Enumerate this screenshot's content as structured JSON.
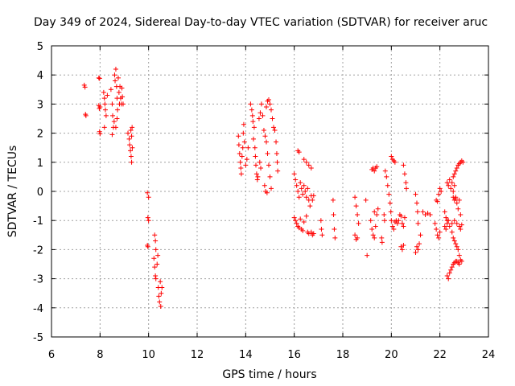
{
  "chart_data": {
    "type": "scatter",
    "title": "Day 349 of 2024, Sidereal Day-to-day VTEC variation (SDTVAR) for receiver aruc",
    "xlabel": "GPS time / hours",
    "ylabel": "SDTVAR / TECUs",
    "xlim": [
      6,
      24
    ],
    "ylim": [
      -5,
      5
    ],
    "xticks": [
      "6",
      "8",
      "10",
      "12",
      "14",
      "16",
      "18",
      "20",
      "22",
      "24"
    ],
    "yticks": [
      "-5",
      "-4",
      "-3",
      "-2",
      "-1",
      "0",
      "1",
      "2",
      "3",
      "4",
      "5"
    ],
    "grid": true,
    "marker": "+",
    "color": "#ff0000",
    "series": [
      {
        "name": "SDTVAR",
        "points": [
          [
            7.35,
            3.65
          ],
          [
            7.38,
            3.58
          ],
          [
            7.4,
            2.65
          ],
          [
            7.42,
            2.6
          ],
          [
            7.95,
            3.9
          ],
          [
            7.98,
            3.88
          ],
          [
            7.95,
            2.95
          ],
          [
            7.97,
            2.85
          ],
          [
            8.0,
            2.9
          ],
          [
            7.98,
            2.05
          ],
          [
            8.0,
            1.98
          ],
          [
            8.15,
            3.4
          ],
          [
            8.18,
            3.2
          ],
          [
            8.2,
            3.0
          ],
          [
            8.22,
            2.8
          ],
          [
            8.25,
            2.6
          ],
          [
            8.18,
            2.2
          ],
          [
            8.3,
            3.3
          ],
          [
            8.45,
            3.5
          ],
          [
            8.5,
            3.0
          ],
          [
            8.52,
            2.6
          ],
          [
            8.55,
            2.2
          ],
          [
            8.5,
            1.95
          ],
          [
            8.58,
            2.4
          ],
          [
            8.6,
            4.0
          ],
          [
            8.62,
            3.8
          ],
          [
            8.65,
            4.2
          ],
          [
            8.68,
            3.6
          ],
          [
            8.7,
            3.2
          ],
          [
            8.72,
            2.8
          ],
          [
            8.75,
            3.9
          ],
          [
            8.78,
            3.4
          ],
          [
            8.8,
            3.0
          ],
          [
            8.82,
            3.6
          ],
          [
            8.85,
            3.2
          ],
          [
            8.88,
            3.0
          ],
          [
            8.9,
            3.55
          ],
          [
            8.92,
            3.25
          ],
          [
            8.95,
            3.0
          ],
          [
            8.7,
            2.5
          ],
          [
            8.65,
            2.2
          ],
          [
            9.15,
            2.0
          ],
          [
            9.2,
            1.8
          ],
          [
            9.22,
            1.6
          ],
          [
            9.25,
            1.4
          ],
          [
            9.28,
            1.2
          ],
          [
            9.3,
            1.0
          ],
          [
            9.32,
            2.2
          ],
          [
            9.3,
            1.9
          ],
          [
            9.27,
            2.1
          ],
          [
            9.33,
            1.5
          ],
          [
            9.95,
            -0.05
          ],
          [
            10.0,
            -0.2
          ],
          [
            9.97,
            -0.9
          ],
          [
            10.0,
            -1.0
          ],
          [
            9.95,
            -1.85
          ],
          [
            9.97,
            -1.9
          ],
          [
            10.25,
            -1.5
          ],
          [
            10.28,
            -1.7
          ],
          [
            10.3,
            -2.0
          ],
          [
            10.22,
            -2.3
          ],
          [
            10.25,
            -2.6
          ],
          [
            10.28,
            -2.9
          ],
          [
            10.3,
            -3.0
          ],
          [
            10.35,
            -2.5
          ],
          [
            10.38,
            -2.2
          ],
          [
            10.4,
            -3.3
          ],
          [
            10.42,
            -3.6
          ],
          [
            10.45,
            -3.8
          ],
          [
            10.5,
            -3.95
          ],
          [
            10.52,
            -3.5
          ],
          [
            10.55,
            -3.3
          ],
          [
            10.48,
            -3.1
          ],
          [
            13.7,
            1.9
          ],
          [
            13.72,
            1.6
          ],
          [
            13.75,
            1.3
          ],
          [
            13.78,
            1.0
          ],
          [
            13.8,
            0.8
          ],
          [
            13.82,
            0.6
          ],
          [
            13.85,
            1.2
          ],
          [
            13.88,
            1.5
          ],
          [
            13.9,
            2.0
          ],
          [
            13.92,
            2.3
          ],
          [
            13.95,
            1.7
          ],
          [
            14.0,
            0.9
          ],
          [
            14.05,
            1.1
          ],
          [
            14.1,
            1.5
          ],
          [
            14.2,
            3.0
          ],
          [
            14.25,
            2.8
          ],
          [
            14.28,
            2.6
          ],
          [
            14.3,
            2.4
          ],
          [
            14.35,
            2.2
          ],
          [
            14.32,
            1.8
          ],
          [
            14.38,
            1.5
          ],
          [
            14.4,
            1.2
          ],
          [
            14.42,
            0.9
          ],
          [
            14.45,
            0.6
          ],
          [
            14.48,
            0.4
          ],
          [
            14.5,
            0.5
          ],
          [
            14.55,
            2.5
          ],
          [
            14.6,
            2.7
          ],
          [
            14.65,
            3.0
          ],
          [
            14.7,
            2.6
          ],
          [
            14.62,
            0.8
          ],
          [
            14.58,
            1.0
          ],
          [
            14.75,
            2.1
          ],
          [
            14.8,
            1.9
          ],
          [
            14.85,
            1.7
          ],
          [
            14.9,
            1.3
          ],
          [
            14.95,
            0.9
          ],
          [
            15.0,
            0.5
          ],
          [
            15.05,
            0.1
          ],
          [
            14.78,
            0.2
          ],
          [
            14.82,
            0.0
          ],
          [
            14.88,
            -0.05
          ],
          [
            14.85,
            2.9
          ],
          [
            14.9,
            3.1
          ],
          [
            14.95,
            3.15
          ],
          [
            15.0,
            3.0
          ],
          [
            15.05,
            2.8
          ],
          [
            15.1,
            2.5
          ],
          [
            15.15,
            2.2
          ],
          [
            15.2,
            2.1
          ],
          [
            15.25,
            1.7
          ],
          [
            15.28,
            1.3
          ],
          [
            15.3,
            1.0
          ],
          [
            15.32,
            0.7
          ],
          [
            16.0,
            0.6
          ],
          [
            16.05,
            0.4
          ],
          [
            16.1,
            0.2
          ],
          [
            16.15,
            0.0
          ],
          [
            16.2,
            -0.2
          ],
          [
            16.25,
            0.3
          ],
          [
            16.3,
            0.1
          ],
          [
            16.35,
            -0.1
          ],
          [
            16.4,
            0.2
          ],
          [
            16.45,
            0.0
          ],
          [
            16.5,
            -0.2
          ],
          [
            16.55,
            0.1
          ],
          [
            16.6,
            -0.3
          ],
          [
            16.65,
            -0.5
          ],
          [
            16.7,
            -0.15
          ],
          [
            16.75,
            -0.3
          ],
          [
            16.8,
            -0.15
          ],
          [
            16.0,
            -0.9
          ],
          [
            16.05,
            -1.0
          ],
          [
            16.1,
            -1.1
          ],
          [
            16.15,
            -1.2
          ],
          [
            16.2,
            -1.25
          ],
          [
            16.25,
            -0.95
          ],
          [
            16.3,
            -1.3
          ],
          [
            16.35,
            -1.35
          ],
          [
            16.4,
            -1.05
          ],
          [
            16.5,
            -0.85
          ],
          [
            16.55,
            -1.4
          ],
          [
            16.6,
            -1.45
          ],
          [
            16.7,
            -1.4
          ],
          [
            16.75,
            -1.5
          ],
          [
            16.8,
            -1.45
          ],
          [
            16.15,
            1.4
          ],
          [
            16.2,
            1.35
          ],
          [
            16.4,
            1.1
          ],
          [
            16.5,
            1.0
          ],
          [
            16.6,
            0.9
          ],
          [
            16.7,
            0.8
          ],
          [
            17.1,
            -1.0
          ],
          [
            17.12,
            -1.3
          ],
          [
            17.15,
            -1.5
          ],
          [
            17.6,
            -0.3
          ],
          [
            17.62,
            -0.8
          ],
          [
            17.65,
            -1.3
          ],
          [
            17.68,
            -1.6
          ],
          [
            18.5,
            -0.2
          ],
          [
            18.55,
            -0.5
          ],
          [
            18.6,
            -0.8
          ],
          [
            18.65,
            -1.1
          ],
          [
            18.5,
            -1.5
          ],
          [
            18.55,
            -1.65
          ],
          [
            18.6,
            -1.6
          ],
          [
            18.95,
            -0.3
          ],
          [
            19.0,
            -2.2
          ],
          [
            19.2,
            0.75
          ],
          [
            19.25,
            0.8
          ],
          [
            19.3,
            0.7
          ],
          [
            19.35,
            0.8
          ],
          [
            19.4,
            0.85
          ],
          [
            19.15,
            -1.0
          ],
          [
            19.2,
            -1.3
          ],
          [
            19.25,
            -1.5
          ],
          [
            19.3,
            -1.6
          ],
          [
            19.35,
            -1.2
          ],
          [
            19.4,
            -0.8
          ],
          [
            19.45,
            -0.6
          ],
          [
            19.3,
            -0.7
          ],
          [
            19.6,
            -1.6
          ],
          [
            19.62,
            -1.75
          ],
          [
            19.7,
            -0.8
          ],
          [
            19.72,
            -1.0
          ],
          [
            19.75,
            0.7
          ],
          [
            19.8,
            0.5
          ],
          [
            19.85,
            0.2
          ],
          [
            19.9,
            -0.1
          ],
          [
            19.95,
            -0.4
          ],
          [
            19.98,
            -0.7
          ],
          [
            20.0,
            1.2
          ],
          [
            20.05,
            1.1
          ],
          [
            20.1,
            1.05
          ],
          [
            20.15,
            1.0
          ],
          [
            20.0,
            -1.0
          ],
          [
            20.05,
            -1.2
          ],
          [
            20.1,
            -1.3
          ],
          [
            20.15,
            -1.05
          ],
          [
            20.2,
            -1.0
          ],
          [
            20.25,
            -1.1
          ],
          [
            20.3,
            -1.0
          ],
          [
            20.35,
            -0.8
          ],
          [
            20.4,
            -0.85
          ],
          [
            20.45,
            -1.1
          ],
          [
            20.5,
            -1.2
          ],
          [
            20.55,
            -0.9
          ],
          [
            20.4,
            -1.9
          ],
          [
            20.45,
            -2.0
          ],
          [
            20.5,
            -1.85
          ],
          [
            20.5,
            0.9
          ],
          [
            20.55,
            0.6
          ],
          [
            20.6,
            0.3
          ],
          [
            20.62,
            0.1
          ],
          [
            21.0,
            -0.1
          ],
          [
            21.05,
            -0.4
          ],
          [
            21.08,
            -0.7
          ],
          [
            21.1,
            -1.1
          ],
          [
            21.05,
            -1.9
          ],
          [
            21.1,
            -2.0
          ],
          [
            21.15,
            -1.8
          ],
          [
            21.2,
            -1.5
          ],
          [
            21.0,
            -2.1
          ],
          [
            21.3,
            -0.7
          ],
          [
            21.4,
            -0.8
          ],
          [
            21.5,
            -0.75
          ],
          [
            21.6,
            -0.8
          ],
          [
            21.8,
            -1.1
          ],
          [
            21.85,
            -1.3
          ],
          [
            21.9,
            -1.5
          ],
          [
            21.95,
            -1.6
          ],
          [
            22.0,
            -1.4
          ],
          [
            21.85,
            -0.3
          ],
          [
            21.9,
            -0.35
          ],
          [
            21.95,
            -0.1
          ],
          [
            22.0,
            0.1
          ],
          [
            22.05,
            0.0
          ],
          [
            22.3,
            0.3
          ],
          [
            22.35,
            0.2
          ],
          [
            22.4,
            0.4
          ],
          [
            22.45,
            0.1
          ],
          [
            22.5,
            0.3
          ],
          [
            22.55,
            0.0
          ],
          [
            22.6,
            0.2
          ],
          [
            22.65,
            -0.2
          ],
          [
            22.7,
            -0.4
          ],
          [
            22.75,
            -0.6
          ],
          [
            22.8,
            -0.3
          ],
          [
            22.85,
            -0.8
          ],
          [
            22.2,
            -1.2
          ],
          [
            22.25,
            -1.3
          ],
          [
            22.3,
            -1.1
          ],
          [
            22.35,
            -1.0
          ],
          [
            22.4,
            -1.2
          ],
          [
            22.5,
            -1.1
          ],
          [
            22.6,
            -1.0
          ],
          [
            22.7,
            -1.1
          ],
          [
            22.8,
            -1.2
          ],
          [
            22.85,
            -1.3
          ],
          [
            22.9,
            -1.15
          ],
          [
            22.5,
            -1.4
          ],
          [
            22.55,
            -1.6
          ],
          [
            22.6,
            -1.7
          ],
          [
            22.65,
            -1.8
          ],
          [
            22.7,
            -1.9
          ],
          [
            22.75,
            -2.0
          ],
          [
            22.8,
            -2.2
          ],
          [
            22.3,
            -2.9
          ],
          [
            22.35,
            -3.0
          ],
          [
            22.4,
            -2.8
          ],
          [
            22.45,
            -2.7
          ],
          [
            22.5,
            -2.6
          ],
          [
            22.55,
            -2.5
          ],
          [
            22.6,
            -2.45
          ],
          [
            22.65,
            -2.4
          ],
          [
            22.7,
            -2.4
          ],
          [
            22.75,
            -2.45
          ],
          [
            22.8,
            -2.5
          ],
          [
            22.85,
            -2.35
          ],
          [
            22.9,
            -2.4
          ],
          [
            22.55,
            0.5
          ],
          [
            22.6,
            0.6
          ],
          [
            22.65,
            0.7
          ],
          [
            22.7,
            0.8
          ],
          [
            22.75,
            0.9
          ],
          [
            22.8,
            0.95
          ],
          [
            22.85,
            1.0
          ],
          [
            22.9,
            1.05
          ],
          [
            22.95,
            1.0
          ],
          [
            22.55,
            -0.2
          ],
          [
            22.6,
            -0.3
          ],
          [
            22.65,
            -0.25
          ],
          [
            22.2,
            -0.7
          ],
          [
            22.25,
            -0.9
          ],
          [
            22.3,
            -1.0
          ]
        ]
      }
    ]
  }
}
